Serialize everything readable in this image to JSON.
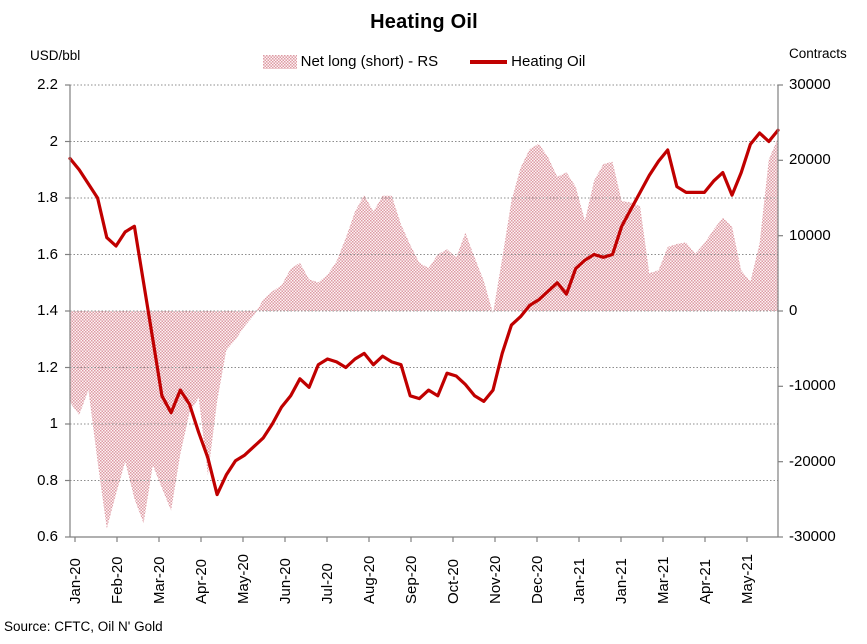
{
  "page": {
    "title": "Heating Oil",
    "source_note": "Source: CFTC, Oil N' Gold"
  },
  "legend": {
    "items": [
      {
        "label": "Net long (short) - RS",
        "swatch": "pink-dot-pattern-area"
      },
      {
        "label": "Heating Oil",
        "swatch": "red-line"
      }
    ]
  },
  "colors": {
    "line": "#c00000",
    "area_dot": "#dd9ba4",
    "area_bg": "#fdf3f4",
    "grid": "#8c8c8c",
    "axis": "#808080",
    "text": "#000000"
  },
  "chart_data": {
    "type": "line+area combo (line on left axis, area on right axis)",
    "title": "Heating Oil",
    "grid": "horizontal dotted gridlines",
    "legend_position": "top center",
    "x_tick_labels": [
      "Jan-20",
      "Feb-20",
      "Mar-20",
      "Apr-20",
      "May-20",
      "Jun-20",
      "Jul-20",
      "Aug-20",
      "Sep-20",
      "Oct-20",
      "Nov-20",
      "Dec-20",
      "Jan-21",
      "Jan-21",
      "Mar-21",
      "Apr-21",
      "May-21"
    ],
    "left_axis": {
      "label": "USD/bbl",
      "min": 0.6,
      "max": 2.2,
      "ticks": [
        2.2,
        2.0,
        1.8,
        1.6,
        1.4,
        1.2,
        1.0,
        0.8,
        0.6
      ],
      "tick_labels": [
        "2.2",
        "2",
        "1.8",
        "1.6",
        "1.4",
        "1.2",
        "1",
        "0.8",
        "0.6"
      ]
    },
    "right_axis": {
      "label": "Contracts",
      "min": -30000,
      "max": 30000,
      "ticks": [
        30000,
        20000,
        10000,
        0,
        -10000,
        -20000,
        -30000
      ],
      "tick_labels": [
        "30000",
        "20000",
        "10000",
        "0",
        "-10000",
        "-20000",
        "-30000"
      ]
    },
    "series": [
      {
        "name": "Net long (short) - RS",
        "type": "area",
        "axis": "right",
        "values": [
          -12100,
          -13800,
          -10500,
          -20000,
          -28900,
          -24300,
          -20000,
          -24900,
          -28200,
          -20500,
          -23500,
          -26500,
          -19000,
          -13500,
          -11500,
          -21800,
          -12000,
          -5200,
          -3800,
          -2000,
          -600,
          1500,
          2600,
          3400,
          5600,
          6400,
          4200,
          3800,
          4800,
          6600,
          9700,
          13200,
          15400,
          13200,
          15300,
          15300,
          11500,
          8800,
          6400,
          5700,
          7500,
          8200,
          7100,
          10400,
          7100,
          4000,
          -300,
          7000,
          14600,
          19000,
          21500,
          22200,
          20400,
          17800,
          18400,
          16500,
          12000,
          17300,
          19500,
          19800,
          14600,
          14400,
          13900,
          5000,
          5400,
          8500,
          8900,
          9100,
          7600,
          9000,
          10800,
          12400,
          11200,
          5400,
          3900,
          9000,
          20100,
          23000
        ]
      },
      {
        "name": "Heating Oil",
        "type": "line",
        "axis": "left",
        "values": [
          1.94,
          1.9,
          1.85,
          1.8,
          1.66,
          1.63,
          1.68,
          1.7,
          1.5,
          1.3,
          1.1,
          1.04,
          1.12,
          1.07,
          0.97,
          0.88,
          0.75,
          0.82,
          0.87,
          0.89,
          0.92,
          0.95,
          1.0,
          1.06,
          1.1,
          1.16,
          1.13,
          1.21,
          1.23,
          1.22,
          1.2,
          1.23,
          1.25,
          1.21,
          1.24,
          1.22,
          1.21,
          1.1,
          1.09,
          1.12,
          1.1,
          1.18,
          1.17,
          1.14,
          1.1,
          1.08,
          1.12,
          1.25,
          1.35,
          1.38,
          1.42,
          1.44,
          1.47,
          1.5,
          1.46,
          1.55,
          1.58,
          1.6,
          1.59,
          1.6,
          1.7,
          1.76,
          1.82,
          1.88,
          1.93,
          1.97,
          1.84,
          1.82,
          1.82,
          1.82,
          1.86,
          1.89,
          1.81,
          1.89,
          1.99,
          2.03,
          2.0,
          2.04
        ]
      }
    ]
  }
}
